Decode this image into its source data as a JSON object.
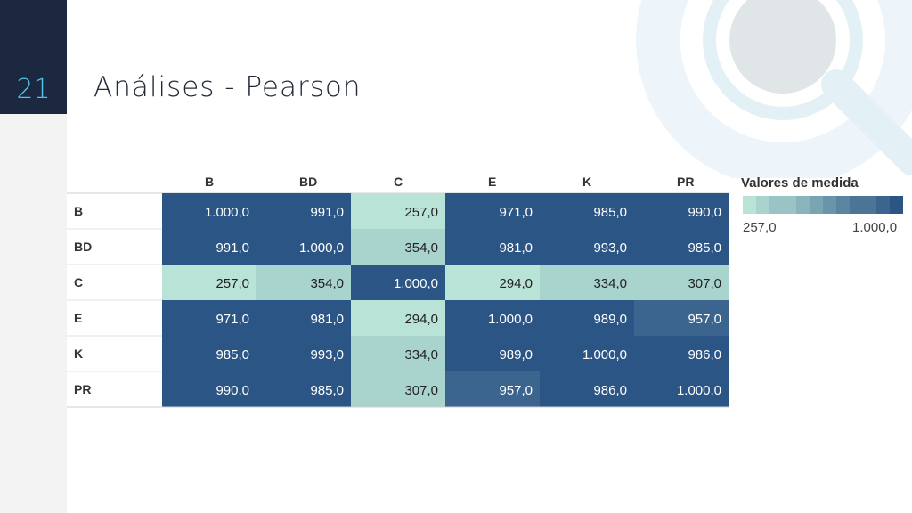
{
  "slide": {
    "number": "21",
    "title": "Análises - Pearson"
  },
  "chart_data": {
    "type": "heatmap",
    "columns": [
      "B",
      "BD",
      "C",
      "E",
      "K",
      "PR"
    ],
    "rows": [
      "B",
      "BD",
      "C",
      "E",
      "K",
      "PR"
    ],
    "values": [
      [
        1000.0,
        991.0,
        257.0,
        971.0,
        985.0,
        990.0
      ],
      [
        991.0,
        1000.0,
        354.0,
        981.0,
        993.0,
        985.0
      ],
      [
        257.0,
        354.0,
        1000.0,
        294.0,
        334.0,
        307.0
      ],
      [
        971.0,
        981.0,
        294.0,
        1000.0,
        989.0,
        957.0
      ],
      [
        985.0,
        993.0,
        334.0,
        989.0,
        1000.0,
        986.0
      ],
      [
        990.0,
        985.0,
        307.0,
        957.0,
        986.0,
        1000.0
      ]
    ],
    "labels": [
      [
        "1.000,0",
        "991,0",
        "257,0",
        "971,0",
        "985,0",
        "990,0"
      ],
      [
        "991,0",
        "1.000,0",
        "354,0",
        "981,0",
        "993,0",
        "985,0"
      ],
      [
        "257,0",
        "354,0",
        "1.000,0",
        "294,0",
        "334,0",
        "307,0"
      ],
      [
        "971,0",
        "981,0",
        "294,0",
        "1.000,0",
        "989,0",
        "957,0"
      ],
      [
        "985,0",
        "993,0",
        "334,0",
        "989,0",
        "1.000,0",
        "986,0"
      ],
      [
        "990,0",
        "985,0",
        "307,0",
        "957,0",
        "986,0",
        "1.000,0"
      ]
    ],
    "legend": {
      "title": "Valores de medida",
      "min_label": "257,0",
      "max_label": "1.000,0",
      "min": 257.0,
      "max": 1000.0,
      "placement": "right"
    },
    "colors": {
      "low": "#b9e3d6",
      "high": "#2b5585"
    }
  }
}
